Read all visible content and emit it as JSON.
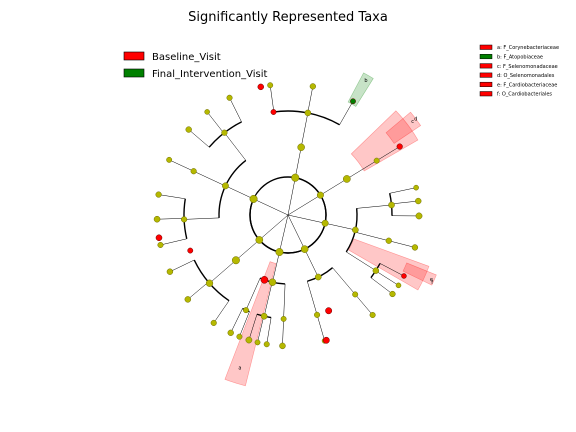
{
  "chart_data": {
    "type": "cladogram",
    "title": "Significantly Represented Taxa",
    "node_color": "#b5b800",
    "node_stroke": "#6b6b00",
    "groups": [
      {
        "name": "Baseline_Visit",
        "color": "#ff0000"
      },
      {
        "name": "Final_Intervention_Visit",
        "color": "#008000"
      }
    ],
    "taxa": [
      {
        "letter": "a",
        "label": "a: F_Corynebacteriaceae",
        "group": "Baseline_Visit",
        "color": "#ff0000"
      },
      {
        "letter": "b",
        "label": "b: F_Atopobiaceae",
        "group": "Final_Intervention_Visit",
        "color": "#008000"
      },
      {
        "letter": "c",
        "label": "c: F_Selenomonadaceae",
        "group": "Baseline_Visit",
        "color": "#ff0000"
      },
      {
        "letter": "d",
        "label": "d: O_Selenomonadales",
        "group": "Baseline_Visit",
        "color": "#ff0000"
      },
      {
        "letter": "e",
        "label": "e: F_Cardiobacteriaceae",
        "group": "Baseline_Visit",
        "color": "#ff0000"
      },
      {
        "letter": "f",
        "label": "f: O_Cardiobacteriales",
        "group": "Baseline_Visit",
        "color": "#ff0000"
      }
    ]
  }
}
